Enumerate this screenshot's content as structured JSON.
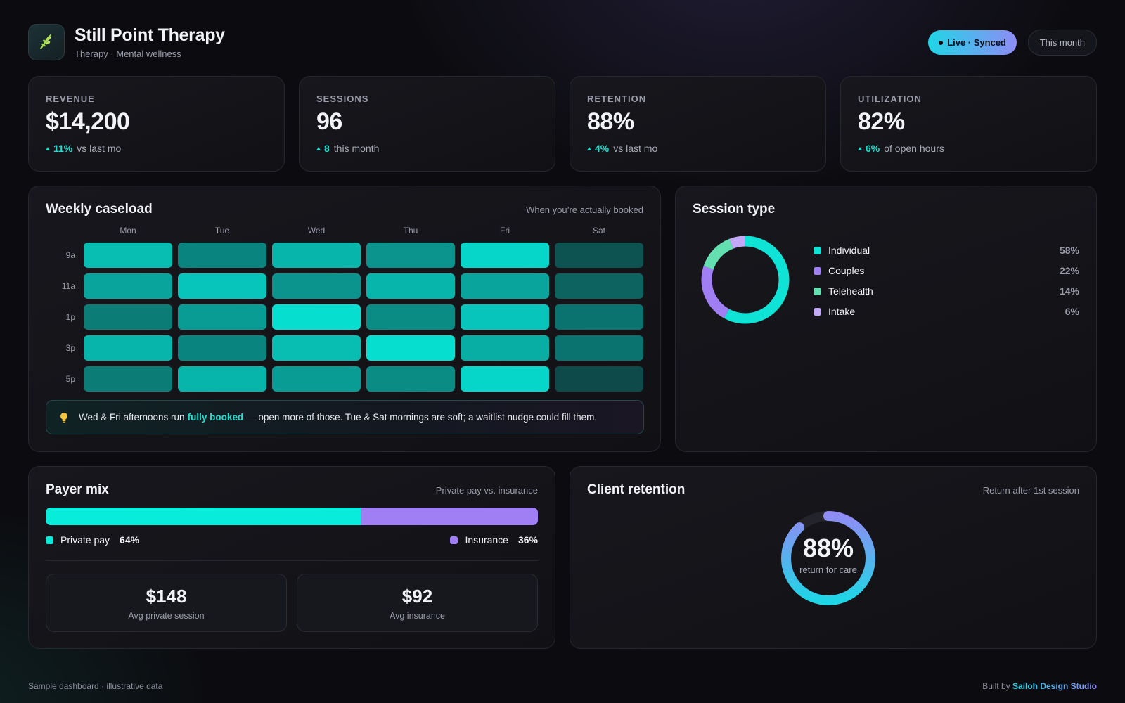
{
  "header": {
    "title": "Still Point Therapy",
    "subtitle": "Therapy · Mental wellness",
    "live_label": "Live · Synced",
    "period_label": "This month",
    "logo_icon": "leaf-sprig-icon"
  },
  "kpis": [
    {
      "label": "REVENUE",
      "value": "$14,200",
      "delta": "11%",
      "context": "vs last mo"
    },
    {
      "label": "SESSIONS",
      "value": "96",
      "delta": "8",
      "context": "this month"
    },
    {
      "label": "RETENTION",
      "value": "88%",
      "delta": "4%",
      "context": "vs last mo"
    },
    {
      "label": "UTILIZATION",
      "value": "82%",
      "delta": "6%",
      "context": "of open hours"
    }
  ],
  "caseload": {
    "title": "Weekly caseload",
    "note": "When you’re actually booked",
    "days": [
      "Mon",
      "Tue",
      "Wed",
      "Thu",
      "Fri",
      "Sat"
    ],
    "times": [
      "9a",
      "11a",
      "1p",
      "3p",
      "5p"
    ],
    "levels": [
      [
        0.8,
        0.45,
        0.75,
        0.55,
        0.95,
        0.15
      ],
      [
        0.65,
        0.85,
        0.55,
        0.75,
        0.65,
        0.25
      ],
      [
        0.4,
        0.6,
        1.0,
        0.5,
        0.85,
        0.35
      ],
      [
        0.75,
        0.45,
        0.8,
        1.0,
        0.7,
        0.35
      ],
      [
        0.4,
        0.75,
        0.6,
        0.5,
        0.95,
        0.1
      ]
    ],
    "insight_before": "Wed & Fri afternoons run",
    "insight_highlight": "fully booked",
    "insight_after": "— open more of those. Tue & Sat mornings are soft; a waitlist nudge could fill them.",
    "insight_icon": "lightbulb-icon"
  },
  "session_type": {
    "title": "Session type",
    "items": [
      {
        "name": "Individual",
        "pct": "58%",
        "value": 58,
        "color": "#0fe3d6"
      },
      {
        "name": "Couples",
        "pct": "22%",
        "value": 22,
        "color": "#a07ff5"
      },
      {
        "name": "Telehealth",
        "pct": "14%",
        "value": 14,
        "color": "#63dfb0"
      },
      {
        "name": "Intake",
        "pct": "6%",
        "value": 6,
        "color": "#c2a8f7"
      }
    ]
  },
  "payer_mix": {
    "title": "Payer mix",
    "note": "Private pay vs. insurance",
    "private_label": "Private pay",
    "private_pct": "64%",
    "private_value": 64,
    "private_color": "#08ecdc",
    "insurance_label": "Insurance",
    "insurance_pct": "36%",
    "insurance_value": 36,
    "insurance_color": "#a07ff5",
    "avg_private_value": "$148",
    "avg_private_label": "Avg private session",
    "avg_insurance_value": "$92",
    "avg_insurance_label": "Avg insurance"
  },
  "retention": {
    "title": "Client retention",
    "note": "Return after 1st session",
    "value_label": "88%",
    "value": 88,
    "caption": "return for care"
  },
  "footer": {
    "left": "Sample dashboard · illustrative data",
    "built_by": "Built by",
    "studio": "Sailoh Design Studio"
  },
  "colors": {
    "accent_teal": "#1fe0d0",
    "accent_purple": "#a07ff5",
    "background": "#0c0c10"
  }
}
